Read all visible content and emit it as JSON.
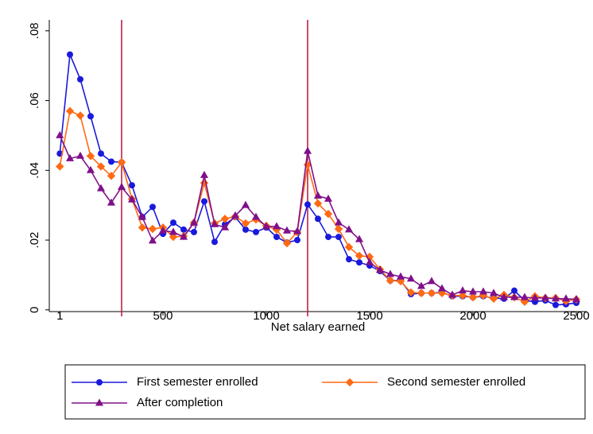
{
  "chart_data": {
    "type": "line",
    "x_label": "Net salary earned",
    "x": [
      1,
      50,
      100,
      150,
      200,
      250,
      300,
      350,
      400,
      450,
      500,
      550,
      600,
      650,
      700,
      750,
      800,
      850,
      900,
      950,
      1000,
      1050,
      1100,
      1150,
      1200,
      1250,
      1300,
      1350,
      1400,
      1450,
      1500,
      1550,
      1600,
      1650,
      1700,
      1750,
      1800,
      1850,
      1900,
      1950,
      2000,
      2050,
      2100,
      2150,
      2200,
      2250,
      2300,
      2350,
      2400,
      2450,
      2500
    ],
    "series": [
      {
        "name": "First semester enrolled",
        "color": "#1a1adc",
        "marker": "circle",
        "values": [
          0.0448,
          0.0732,
          0.0661,
          0.0555,
          0.0448,
          0.0425,
          0.0423,
          0.0357,
          0.0266,
          0.0295,
          0.0218,
          0.025,
          0.023,
          0.0223,
          0.0311,
          0.0195,
          0.0245,
          0.0266,
          0.023,
          0.0223,
          0.0236,
          0.0209,
          0.0193,
          0.02,
          0.0302,
          0.0261,
          0.0209,
          0.0209,
          0.0145,
          0.0136,
          0.0127,
          0.0111,
          0.0084,
          0.0084,
          0.0045,
          0.0048,
          0.0048,
          0.005,
          0.0039,
          0.0039,
          0.0036,
          0.0039,
          0.0034,
          0.0032,
          0.0055,
          0.0027,
          0.0023,
          0.0027,
          0.0014,
          0.0016,
          0.002
        ]
      },
      {
        "name": "Second semester enrolled",
        "color": "#ff6a14",
        "marker": "diamond",
        "values": [
          0.0411,
          0.057,
          0.0557,
          0.0441,
          0.0411,
          0.0384,
          0.0423,
          0.0318,
          0.0236,
          0.0232,
          0.0236,
          0.0209,
          0.0211,
          0.025,
          0.0364,
          0.0248,
          0.0261,
          0.0268,
          0.0248,
          0.0259,
          0.0241,
          0.023,
          0.0191,
          0.0223,
          0.0416,
          0.0305,
          0.0275,
          0.0232,
          0.018,
          0.0155,
          0.0152,
          0.0116,
          0.0084,
          0.0082,
          0.005,
          0.0048,
          0.0048,
          0.0048,
          0.0041,
          0.0041,
          0.0036,
          0.0041,
          0.0032,
          0.0043,
          0.0036,
          0.0023,
          0.0039,
          0.0034,
          0.0034,
          0.0025,
          0.003
        ]
      },
      {
        "name": "After completion",
        "color": "#80108a",
        "marker": "triangle",
        "values": [
          0.05,
          0.0434,
          0.0441,
          0.04,
          0.0348,
          0.0307,
          0.0352,
          0.0316,
          0.0266,
          0.0198,
          0.0227,
          0.0223,
          0.0209,
          0.025,
          0.0386,
          0.0245,
          0.0236,
          0.027,
          0.03,
          0.0266,
          0.0239,
          0.0239,
          0.0227,
          0.0225,
          0.0455,
          0.0327,
          0.0318,
          0.025,
          0.023,
          0.0202,
          0.0136,
          0.0114,
          0.0102,
          0.0095,
          0.0089,
          0.0068,
          0.0082,
          0.0061,
          0.0043,
          0.0055,
          0.0052,
          0.0052,
          0.0048,
          0.0036,
          0.0036,
          0.0036,
          0.0034,
          0.0034,
          0.0032,
          0.0032,
          0.003
        ]
      }
    ],
    "xlim": [
      -50,
      2550
    ],
    "ylim": [
      -0.0005,
      0.082
    ],
    "xticks": [
      1,
      500,
      1000,
      1500,
      2000,
      2500
    ],
    "yticks": [
      0,
      {
        "value": 0.02,
        "label": ".02"
      },
      {
        "value": 0.04,
        "label": ".04"
      },
      {
        "value": 0.06,
        "label": ".06"
      },
      {
        "value": 0.08,
        "label": ".08"
      }
    ],
    "xlines": [
      300,
      1200
    ],
    "xline_color": "#c0103a",
    "grid": false
  }
}
